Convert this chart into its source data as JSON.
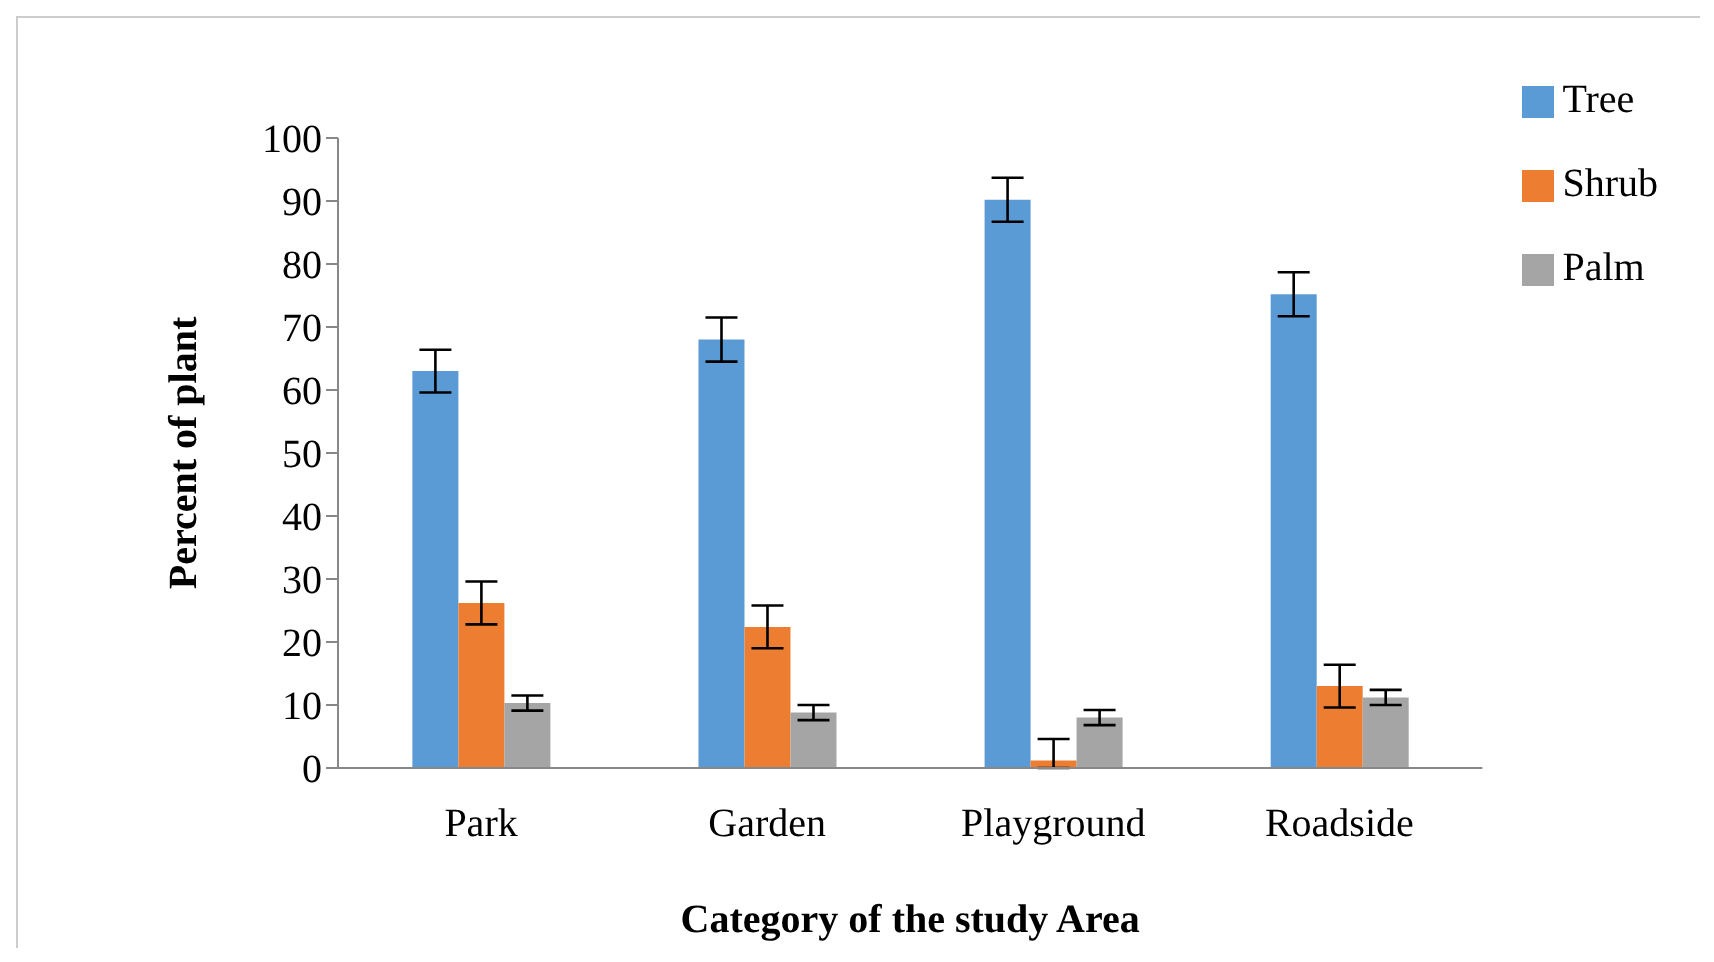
{
  "chart_data": {
    "type": "bar",
    "xlabel": "Category of the study Area",
    "ylabel": "Percent of plant",
    "categories": [
      "Park",
      "Garden",
      "Playground",
      "Roadside"
    ],
    "series": [
      {
        "name": "Tree",
        "color": "#5b9bd5",
        "values": [
          63,
          68,
          90.2,
          75.2
        ],
        "errors": [
          3.4,
          3.5,
          3.5,
          3.5
        ]
      },
      {
        "name": "Shrub",
        "color": "#ed7d31",
        "values": [
          26.2,
          22.4,
          1.2,
          13
        ],
        "errors": [
          3.4,
          3.4,
          [
            0,
            4.6
          ],
          3.4
        ]
      },
      {
        "name": "Palm",
        "color": "#a5a5a5",
        "values": [
          10.3,
          8.8,
          8,
          11.2
        ],
        "errors": [
          1.2,
          1.2,
          1.2,
          1.2
        ]
      }
    ],
    "ylim": [
      0,
      100
    ],
    "yticks": [
      0,
      10,
      20,
      30,
      40,
      50,
      60,
      70,
      80,
      90,
      100
    ],
    "grid": false,
    "legend": "right"
  }
}
